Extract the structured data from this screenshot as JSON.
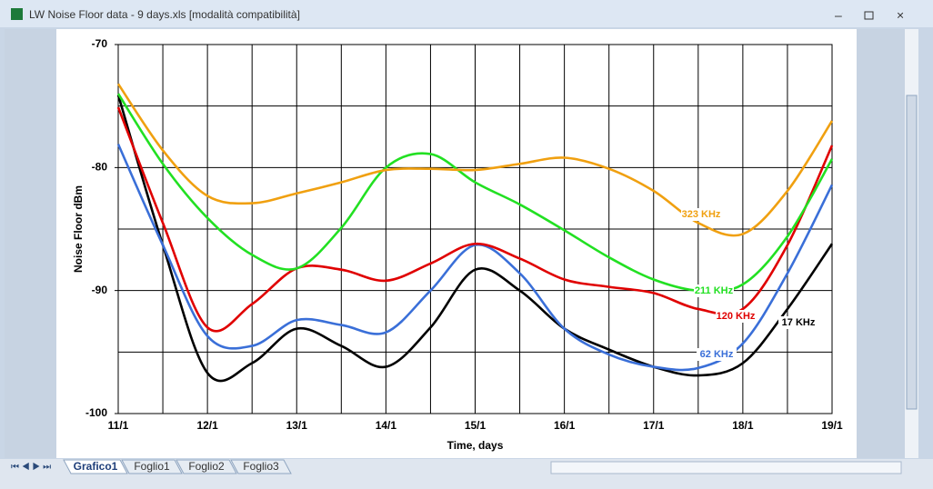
{
  "window": {
    "title": "LW Noise Floor data - 9 days.xls  [modalità compatibilità]"
  },
  "sheet_tabs": [
    "Grafico1",
    "Foglio1",
    "Foglio2",
    "Foglio3"
  ],
  "chart_data": {
    "type": "line",
    "y_label": "Noise Floor dBm",
    "x_label": "Time, days",
    "categories": [
      "11/1",
      null,
      "12/1",
      null,
      "13/1",
      null,
      "14/1",
      null,
      "15/1",
      null,
      "16/1",
      null,
      "17/1",
      null,
      "18/1",
      null,
      "19/1"
    ],
    "ylim": [
      -100,
      -70
    ],
    "yticks": [
      -70,
      -80,
      -90,
      -100
    ],
    "minor_yticks": [
      -75,
      -85,
      -95
    ],
    "grid": true,
    "smooth": true,
    "series": [
      {
        "name": "17 KHz",
        "color": "#000000",
        "values": [
          -74.1,
          -86.3,
          -96.7,
          -95.9,
          -93.1,
          -94.5,
          -96.2,
          -93.0,
          -88.3,
          -90.0,
          -93.1,
          -94.8,
          -96.2,
          -96.9,
          -95.9,
          -91.5,
          -86.2
        ]
      },
      {
        "name": "62 KHz",
        "color": "#3a6fd8",
        "values": [
          -78.1,
          -86.3,
          -93.7,
          -94.5,
          -92.4,
          -92.8,
          -93.4,
          -90.0,
          -86.3,
          -88.6,
          -93.1,
          -95.2,
          -96.2,
          -96.3,
          -94.3,
          -88.6,
          -81.4
        ]
      },
      {
        "name": "120 KHz",
        "color": "#e00000",
        "values": [
          -75.1,
          -84.5,
          -93.0,
          -91.1,
          -88.2,
          -88.3,
          -89.2,
          -87.8,
          -86.2,
          -87.4,
          -89.1,
          -89.7,
          -90.2,
          -91.5,
          -91.5,
          -86.3,
          -78.2
        ]
      },
      {
        "name": "211 KHz",
        "color": "#22e022",
        "values": [
          -74.0,
          -79.7,
          -84.1,
          -87.1,
          -88.2,
          -84.9,
          -80.0,
          -78.9,
          -81.2,
          -83.0,
          -85.1,
          -87.3,
          -89.1,
          -90.0,
          -89.5,
          -85.6,
          -79.3
        ]
      },
      {
        "name": "323 KHz",
        "color": "#f0a010",
        "values": [
          -73.2,
          -78.6,
          -82.3,
          -82.9,
          -82.1,
          -81.2,
          -80.2,
          -80.1,
          -80.2,
          -79.7,
          -79.2,
          -80.1,
          -81.9,
          -84.5,
          -85.4,
          -81.9,
          -76.2
        ]
      }
    ]
  }
}
